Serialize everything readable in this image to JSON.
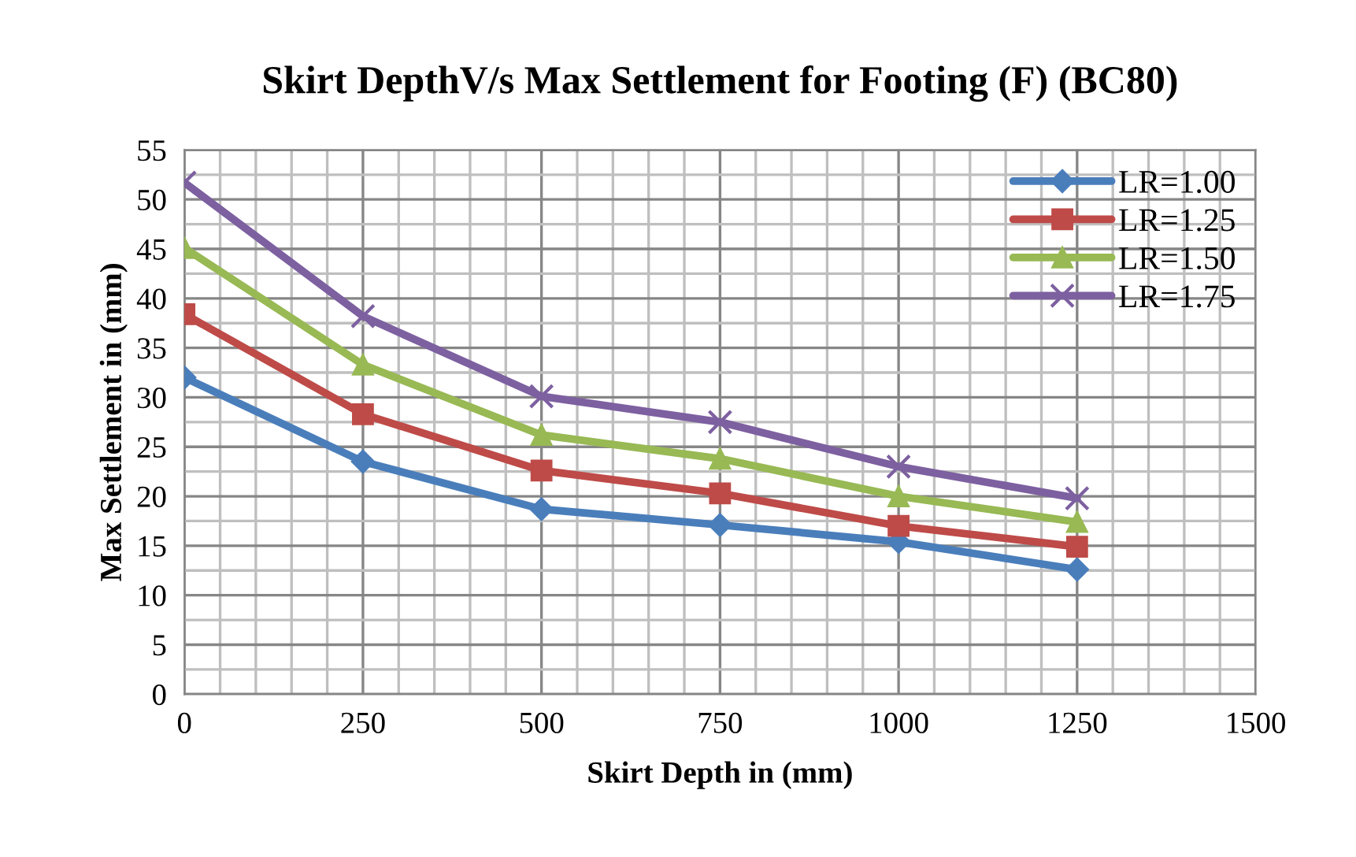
{
  "chart_data": {
    "type": "line",
    "title": "Skirt DepthV/s Max Settlement for Footing (F) (BC80)",
    "xlabel": "Skirt Depth in (mm)",
    "ylabel": "Max Settlement in (mm)",
    "x": [
      0,
      250,
      500,
      750,
      1000,
      1250
    ],
    "series": [
      {
        "name": "LR=1.00",
        "color": "#4a7ebb",
        "marker": "diamond",
        "values": [
          32,
          23.5,
          18.7,
          17.1,
          15.4,
          12.6
        ]
      },
      {
        "name": "LR=1.25",
        "color": "#be4b48",
        "marker": "square",
        "values": [
          38.4,
          28.3,
          22.6,
          20.3,
          17,
          14.9
        ]
      },
      {
        "name": "LR=1.50",
        "color": "#98b954",
        "marker": "triangle",
        "values": [
          45.1,
          33.3,
          26.2,
          23.8,
          20,
          17.4
        ]
      },
      {
        "name": "LR=1.75",
        "color": "#7d60a0",
        "marker": "cross",
        "values": [
          51.7,
          38.2,
          30.1,
          27.5,
          23,
          19.8
        ]
      }
    ],
    "xlim": [
      0,
      1500
    ],
    "xticks": [
      0,
      250,
      500,
      750,
      1000,
      1250,
      1500
    ],
    "ylim": [
      0,
      55
    ],
    "yticks": [
      0,
      5,
      10,
      15,
      20,
      25,
      30,
      35,
      40,
      45,
      50,
      55
    ],
    "grid": true,
    "legend": "top right",
    "line_style": "solid"
  }
}
